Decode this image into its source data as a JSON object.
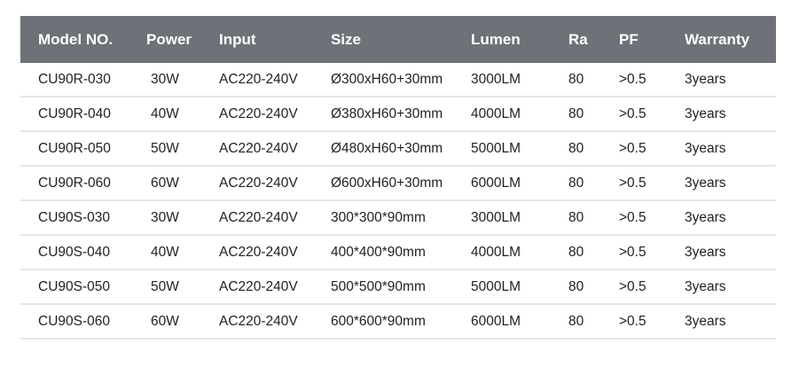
{
  "headers": [
    "Model NO.",
    "Power",
    "Input",
    "Size",
    "Lumen",
    "Ra",
    "PF",
    "Warranty"
  ],
  "rows": [
    [
      "CU90R-030",
      "30W",
      "AC220-240V",
      "Ø300xH60+30mm",
      "3000LM",
      "80",
      ">0.5",
      "3years"
    ],
    [
      "CU90R-040",
      "40W",
      "AC220-240V",
      "Ø380xH60+30mm",
      "4000LM",
      "80",
      ">0.5",
      "3years"
    ],
    [
      "CU90R-050",
      "50W",
      "AC220-240V",
      "Ø480xH60+30mm",
      "5000LM",
      "80",
      ">0.5",
      "3years"
    ],
    [
      "CU90R-060",
      "60W",
      "AC220-240V",
      "Ø600xH60+30mm",
      "6000LM",
      "80",
      ">0.5",
      "3years"
    ],
    [
      "CU90S-030",
      "30W",
      "AC220-240V",
      "300*300*90mm",
      "3000LM",
      "80",
      ">0.5",
      "3years"
    ],
    [
      "CU90S-040",
      "40W",
      "AC220-240V",
      "400*400*90mm",
      "4000LM",
      "80",
      ">0.5",
      "3years"
    ],
    [
      "CU90S-050",
      "50W",
      "AC220-240V",
      "500*500*90mm",
      "5000LM",
      "80",
      ">0.5",
      "3years"
    ],
    [
      "CU90S-060",
      "60W",
      "AC220-240V",
      "600*600*90mm",
      "6000LM",
      "80",
      ">0.5",
      "3years"
    ]
  ],
  "colors": {
    "header_bg": "#6e7178",
    "header_text": "#ffffff",
    "row_divider": "#e6e6e6"
  }
}
